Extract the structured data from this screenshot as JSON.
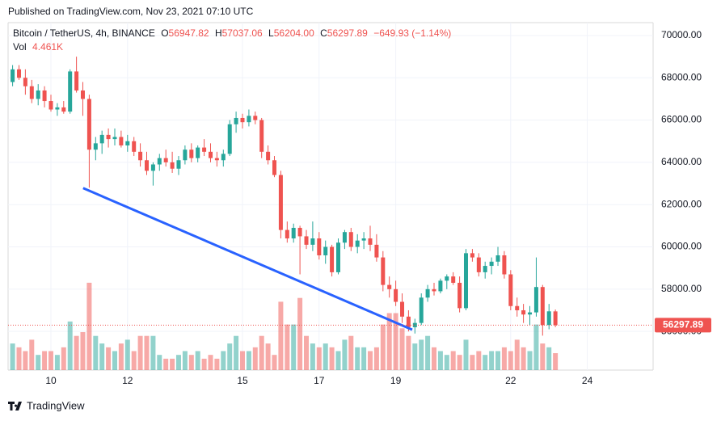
{
  "header": {
    "published": "Published on TradingView.com, Nov 23, 2021 07:10 UTC"
  },
  "footer": {
    "brand": "TradingView"
  },
  "chart_data": {
    "type": "candlestick",
    "legend": {
      "symbol": "Bitcoin / TetherUS, 4h, BINANCE",
      "o": "O",
      "open": "56947.82",
      "h": "H",
      "high": "57037.06",
      "l": "L",
      "low": "56204.00",
      "c": "C",
      "close": "56297.89",
      "change": "−649.93 (−1.14%)",
      "vol": "Vol",
      "volume": "4.461K"
    },
    "last_price_label": "56297.89",
    "up_color": "#26a69a",
    "down_color": "#ef5350",
    "xlim": [
      8.882,
      25.717
    ],
    "xticks": [
      10,
      12,
      15,
      17,
      19,
      22,
      24
    ],
    "ylim": [
      54170,
      70610
    ],
    "yticks": [
      {
        "value": 56000,
        "label": "56000.00"
      },
      {
        "value": 58000,
        "label": "58000.00"
      },
      {
        "value": 60000,
        "label": "60000.00"
      },
      {
        "value": 62000,
        "label": "62000.00"
      },
      {
        "value": 64000,
        "label": "64000.00"
      },
      {
        "value": 66000,
        "label": "66000.00"
      },
      {
        "value": 68000,
        "label": "68000.00"
      },
      {
        "value": 70000,
        "label": "70000.00"
      }
    ],
    "x": [
      9,
      9.167,
      9.333,
      9.5,
      9.667,
      9.833,
      10,
      10.167,
      10.333,
      10.5,
      10.667,
      10.833,
      11,
      11.167,
      11.333,
      11.5,
      11.667,
      11.833,
      12,
      12.167,
      12.333,
      12.5,
      12.667,
      12.833,
      13,
      13.167,
      13.333,
      13.5,
      13.667,
      13.833,
      14,
      14.167,
      14.333,
      14.5,
      14.667,
      14.833,
      15,
      15.167,
      15.333,
      15.5,
      15.667,
      15.833,
      16,
      16.167,
      16.333,
      16.5,
      16.667,
      16.833,
      17,
      17.167,
      17.333,
      17.5,
      17.667,
      17.833,
      18,
      18.167,
      18.333,
      18.5,
      18.667,
      18.833,
      19,
      19.167,
      19.333,
      19.5,
      19.667,
      19.833,
      20,
      20.167,
      20.333,
      20.5,
      20.667,
      20.833,
      21,
      21.167,
      21.333,
      21.5,
      21.667,
      21.833,
      22,
      22.167,
      22.333,
      22.5,
      22.667,
      22.833,
      23,
      23.167
    ],
    "open": [
      67800,
      68400,
      68000,
      67600,
      67000,
      67400,
      66900,
      66500,
      66600,
      66400,
      68300,
      67400,
      67000,
      64600,
      64900,
      65300,
      65100,
      65200,
      64800,
      65000,
      64500,
      64100,
      63600,
      63900,
      64200,
      64000,
      63700,
      64100,
      64600,
      64200,
      64700,
      64500,
      64200,
      64100,
      64400,
      65800,
      66100,
      65900,
      66200,
      66000,
      64500,
      64100,
      63400,
      60800,
      60400,
      60900,
      60500,
      60100,
      60400,
      59600,
      60000,
      58800,
      60200,
      60700,
      60000,
      60300,
      60400,
      60100,
      59500,
      58200,
      58000,
      57400,
      56700,
      56200,
      56400,
      57600,
      58000,
      57900,
      58400,
      58600,
      58300,
      57100,
      59700,
      59500,
      58800,
      59100,
      59300,
      59600,
      58700,
      57200,
      57000,
      56800,
      56900,
      58100,
      56300,
      56947.82
    ],
    "high": [
      68600,
      68600,
      68400,
      67900,
      67700,
      67600,
      67200,
      66800,
      66900,
      68400,
      69000,
      67800,
      67200,
      65200,
      65500,
      65600,
      65600,
      65500,
      65300,
      65200,
      64900,
      64500,
      64000,
      64400,
      64600,
      64500,
      64300,
      64800,
      64900,
      64800,
      65100,
      64900,
      64500,
      64600,
      66000,
      66400,
      66300,
      66500,
      66400,
      66100,
      64800,
      64300,
      63600,
      61200,
      61100,
      61000,
      60800,
      61200,
      60700,
      60300,
      60100,
      60400,
      60800,
      60900,
      60600,
      60700,
      61000,
      60600,
      59800,
      58600,
      58400,
      57800,
      57000,
      56600,
      57800,
      58200,
      58300,
      58500,
      58700,
      58800,
      58600,
      59900,
      59900,
      59700,
      59300,
      59500,
      60000,
      59800,
      58900,
      57600,
      57300,
      57200,
      59500,
      58200,
      57300,
      57037.06
    ],
    "low": [
      67600,
      67900,
      67200,
      66800,
      66700,
      66600,
      66400,
      66200,
      66300,
      66300,
      67300,
      66200,
      62800,
      64100,
      64400,
      64700,
      64800,
      64700,
      64500,
      64300,
      63800,
      63400,
      62900,
      63600,
      63800,
      63500,
      63400,
      63900,
      64000,
      64000,
      64300,
      64000,
      63800,
      63800,
      64300,
      65400,
      65600,
      65700,
      65800,
      64200,
      63900,
      63300,
      60400,
      60200,
      60200,
      58700,
      59900,
      59800,
      59400,
      59200,
      58600,
      58700,
      59900,
      59800,
      59700,
      59900,
      59800,
      59300,
      57900,
      57600,
      57200,
      56400,
      56000,
      55900,
      56300,
      57400,
      57700,
      57800,
      58000,
      58200,
      56900,
      57000,
      59300,
      58600,
      58500,
      58700,
      59100,
      58500,
      57000,
      56700,
      56400,
      56300,
      56700,
      55800,
      56100,
      56204
    ],
    "close": [
      68400,
      68000,
      67600,
      67000,
      67400,
      66900,
      66500,
      66600,
      66400,
      68300,
      67400,
      67000,
      64600,
      64900,
      65300,
      65100,
      65200,
      64800,
      65000,
      64500,
      64100,
      63600,
      63900,
      64200,
      64000,
      63700,
      64100,
      64600,
      64200,
      64700,
      64500,
      64200,
      64100,
      64400,
      65800,
      66100,
      65900,
      66200,
      66000,
      64500,
      64100,
      63400,
      60800,
      60400,
      60900,
      60500,
      60100,
      60400,
      59600,
      60000,
      58800,
      60200,
      60700,
      60000,
      60300,
      60400,
      60100,
      59500,
      58200,
      58000,
      57400,
      56700,
      56200,
      56400,
      57600,
      58000,
      57900,
      58400,
      58600,
      58300,
      57100,
      59700,
      59500,
      58800,
      59100,
      59300,
      59600,
      58700,
      57200,
      57000,
      56800,
      56900,
      58100,
      56300,
      56950,
      56297.89
    ],
    "volume": [
      7,
      6,
      5,
      8,
      4,
      5,
      5,
      4,
      6,
      12.8,
      9,
      10,
      23,
      9,
      7,
      6,
      5,
      7,
      8,
      5,
      9,
      9,
      9,
      4,
      3,
      3,
      4,
      5,
      4,
      5,
      3,
      4,
      3,
      5,
      7,
      9,
      5,
      5,
      6,
      9,
      7,
      4,
      18,
      12,
      12,
      19,
      9,
      7,
      6,
      7,
      6,
      5,
      8,
      9,
      6,
      6,
      5,
      6,
      12,
      15,
      15,
      11,
      9,
      7,
      8,
      9,
      6,
      5,
      4,
      5,
      4,
      8,
      4,
      5,
      4,
      5,
      5,
      6,
      5,
      8,
      6,
      5,
      12,
      7,
      6,
      4.461
    ],
    "trendline": {
      "x": [
        10.84,
        19.43
      ],
      "y": [
        62780,
        56080
      ],
      "color": "#2962ff"
    }
  }
}
